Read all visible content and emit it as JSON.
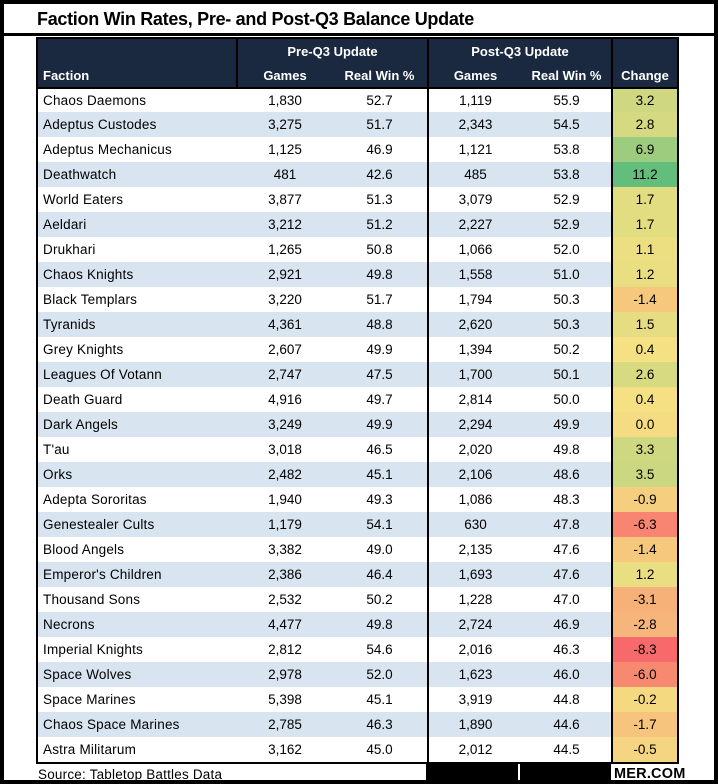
{
  "chart_data": {
    "type": "table",
    "title": "Faction Win Rates, Pre- and Post-Q3 Balance Update",
    "group_headers": [
      "Pre-Q3 Update",
      "Post-Q3 Update"
    ],
    "columns": [
      "Faction",
      "Games",
      "Real Win %",
      "Games",
      "Real Win %",
      "Change"
    ],
    "rows": [
      [
        "Chaos Daemons",
        "1,830",
        "52.7",
        "1,119",
        "55.9",
        "3.2"
      ],
      [
        "Adeptus Custodes",
        "3,275",
        "51.7",
        "2,343",
        "54.5",
        "2.8"
      ],
      [
        "Adeptus Mechanicus",
        "1,125",
        "46.9",
        "1,121",
        "53.8",
        "6.9"
      ],
      [
        "Deathwatch",
        "481",
        "42.6",
        "485",
        "53.8",
        "11.2"
      ],
      [
        "World Eaters",
        "3,877",
        "51.3",
        "3,079",
        "52.9",
        "1.7"
      ],
      [
        "Aeldari",
        "3,212",
        "51.2",
        "2,227",
        "52.9",
        "1.7"
      ],
      [
        "Drukhari",
        "1,265",
        "50.8",
        "1,066",
        "52.0",
        "1.1"
      ],
      [
        "Chaos Knights",
        "2,921",
        "49.8",
        "1,558",
        "51.0",
        "1.2"
      ],
      [
        "Black Templars",
        "3,220",
        "51.7",
        "1,794",
        "50.3",
        "-1.4"
      ],
      [
        "Tyranids",
        "4,361",
        "48.8",
        "2,620",
        "50.3",
        "1.5"
      ],
      [
        "Grey Knights",
        "2,607",
        "49.9",
        "1,394",
        "50.2",
        "0.4"
      ],
      [
        "Leagues Of Votann",
        "2,747",
        "47.5",
        "1,700",
        "50.1",
        "2.6"
      ],
      [
        "Death Guard",
        "4,916",
        "49.7",
        "2,814",
        "50.0",
        "0.4"
      ],
      [
        "Dark Angels",
        "3,249",
        "49.9",
        "2,294",
        "49.9",
        "0.0"
      ],
      [
        "T'au",
        "3,018",
        "46.5",
        "2,020",
        "49.8",
        "3.3"
      ],
      [
        "Orks",
        "2,482",
        "45.1",
        "2,106",
        "48.6",
        "3.5"
      ],
      [
        "Adepta Sororitas",
        "1,940",
        "49.3",
        "1,086",
        "48.3",
        "-0.9"
      ],
      [
        "Genestealer Cults",
        "1,179",
        "54.1",
        "630",
        "47.8",
        "-6.3"
      ],
      [
        "Blood Angels",
        "3,382",
        "49.0",
        "2,135",
        "47.6",
        "-1.4"
      ],
      [
        "Emperor's Children",
        "2,386",
        "46.4",
        "1,693",
        "47.6",
        "1.2"
      ],
      [
        "Thousand Sons",
        "2,532",
        "50.2",
        "1,228",
        "47.0",
        "-3.1"
      ],
      [
        "Necrons",
        "4,477",
        "49.8",
        "2,724",
        "46.9",
        "-2.8"
      ],
      [
        "Imperial Knights",
        "2,812",
        "54.6",
        "2,016",
        "46.3",
        "-8.3"
      ],
      [
        "Space Wolves",
        "2,978",
        "52.0",
        "1,623",
        "46.0",
        "-6.0"
      ],
      [
        "Space Marines",
        "5,398",
        "45.1",
        "3,919",
        "44.8",
        "-0.2"
      ],
      [
        "Chaos Space Marines",
        "2,785",
        "46.3",
        "1,890",
        "44.6",
        "-1.7"
      ],
      [
        "Astra Militarum",
        "3,162",
        "45.0",
        "2,012",
        "44.5",
        "-0.5"
      ]
    ]
  },
  "change_scale": {
    "min_value": -8.3,
    "mid_value": 0.4,
    "max_value": 11.2,
    "min_color": "#F8696B",
    "mid_color": "#F5E183",
    "max_color": "#63BE7B"
  },
  "colors": {
    "header_bg": "#1A2940",
    "header_text": "#FFFFFF",
    "row_alt_bg": "#D8E4F0",
    "border": "#000000"
  },
  "footer": {
    "source": "Source: Tabletop Battles Data",
    "watermark_visible": "MER.COM"
  }
}
